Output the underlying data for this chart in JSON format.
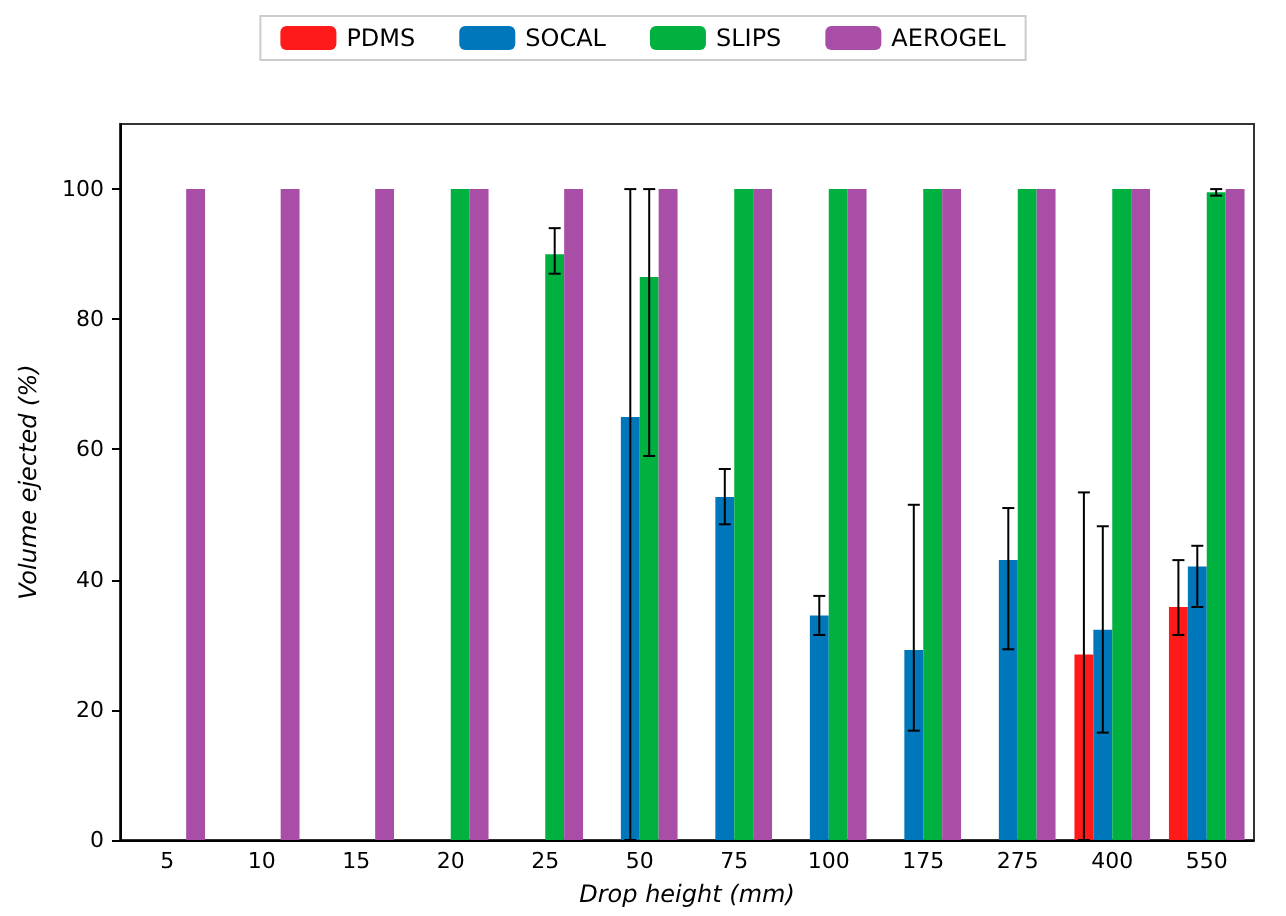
{
  "chart_data": {
    "type": "bar",
    "xlabel": "Drop height (mm)",
    "ylabel": "Volume ejected (%)",
    "categories": [
      "5",
      "10",
      "15",
      "20",
      "25",
      "50",
      "75",
      "100",
      "175",
      "275",
      "400",
      "550"
    ],
    "series": [
      {
        "name": "PDMS",
        "color": "#ff1a1a",
        "values": [
          0,
          0,
          0,
          0,
          0,
          0,
          0,
          0,
          0,
          0,
          28.5,
          35.8
        ],
        "errors": [
          null,
          null,
          null,
          null,
          null,
          null,
          null,
          null,
          null,
          null,
          [
            0,
            53.4
          ],
          [
            31.5,
            43
          ]
        ]
      },
      {
        "name": "SOCAL",
        "color": "#0077bb",
        "values": [
          0,
          0,
          0,
          0,
          0,
          65,
          52.7,
          34.5,
          29.2,
          43,
          32.3,
          42
        ],
        "errors": [
          null,
          null,
          null,
          null,
          null,
          [
            0,
            100
          ],
          [
            48.5,
            57
          ],
          [
            31.5,
            37.5
          ],
          [
            16.8,
            51.5
          ],
          [
            29.3,
            51
          ],
          [
            16.5,
            48.2
          ],
          [
            35.8,
            45.2
          ]
        ]
      },
      {
        "name": "SLIPS",
        "color": "#00b140",
        "values": [
          0,
          0,
          0,
          100,
          90,
          86.5,
          100,
          100,
          100,
          100,
          100,
          99.5
        ],
        "errors": [
          null,
          null,
          null,
          null,
          [
            87,
            94
          ],
          [
            59,
            100
          ],
          null,
          null,
          null,
          null,
          null,
          [
            99,
            100
          ]
        ]
      },
      {
        "name": "AEROGEL",
        "color": "#a94ea7",
        "values": [
          100,
          100,
          100,
          100,
          100,
          100,
          100,
          100,
          100,
          100,
          100,
          100
        ]
      }
    ],
    "ylim": [
      0,
      110
    ],
    "yticks": [
      0,
      20,
      40,
      60,
      80,
      100
    ],
    "grid": false,
    "legend": "top"
  }
}
